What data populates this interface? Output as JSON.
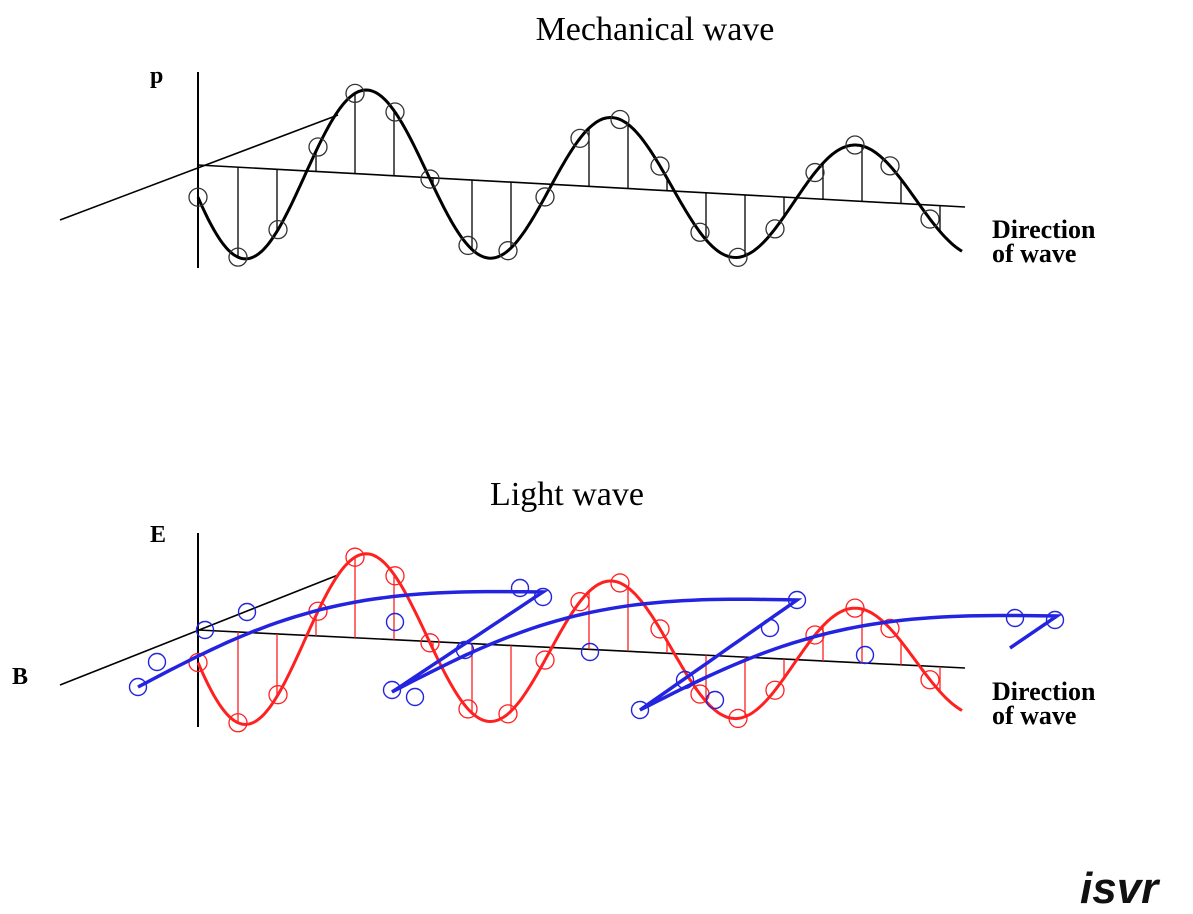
{
  "mechanical": {
    "title": "Mechanical wave",
    "axis_label": "p",
    "direction_line1": "Direction",
    "direction_line2": "of wave",
    "wave_color": "#000000"
  },
  "light": {
    "title": "Light wave",
    "e_label": "E",
    "b_label": "B",
    "direction_line1": "Direction",
    "direction_line2": "of wave",
    "e_color": "#ff2020",
    "b_color": "#2424e0"
  },
  "logo": "isvr"
}
